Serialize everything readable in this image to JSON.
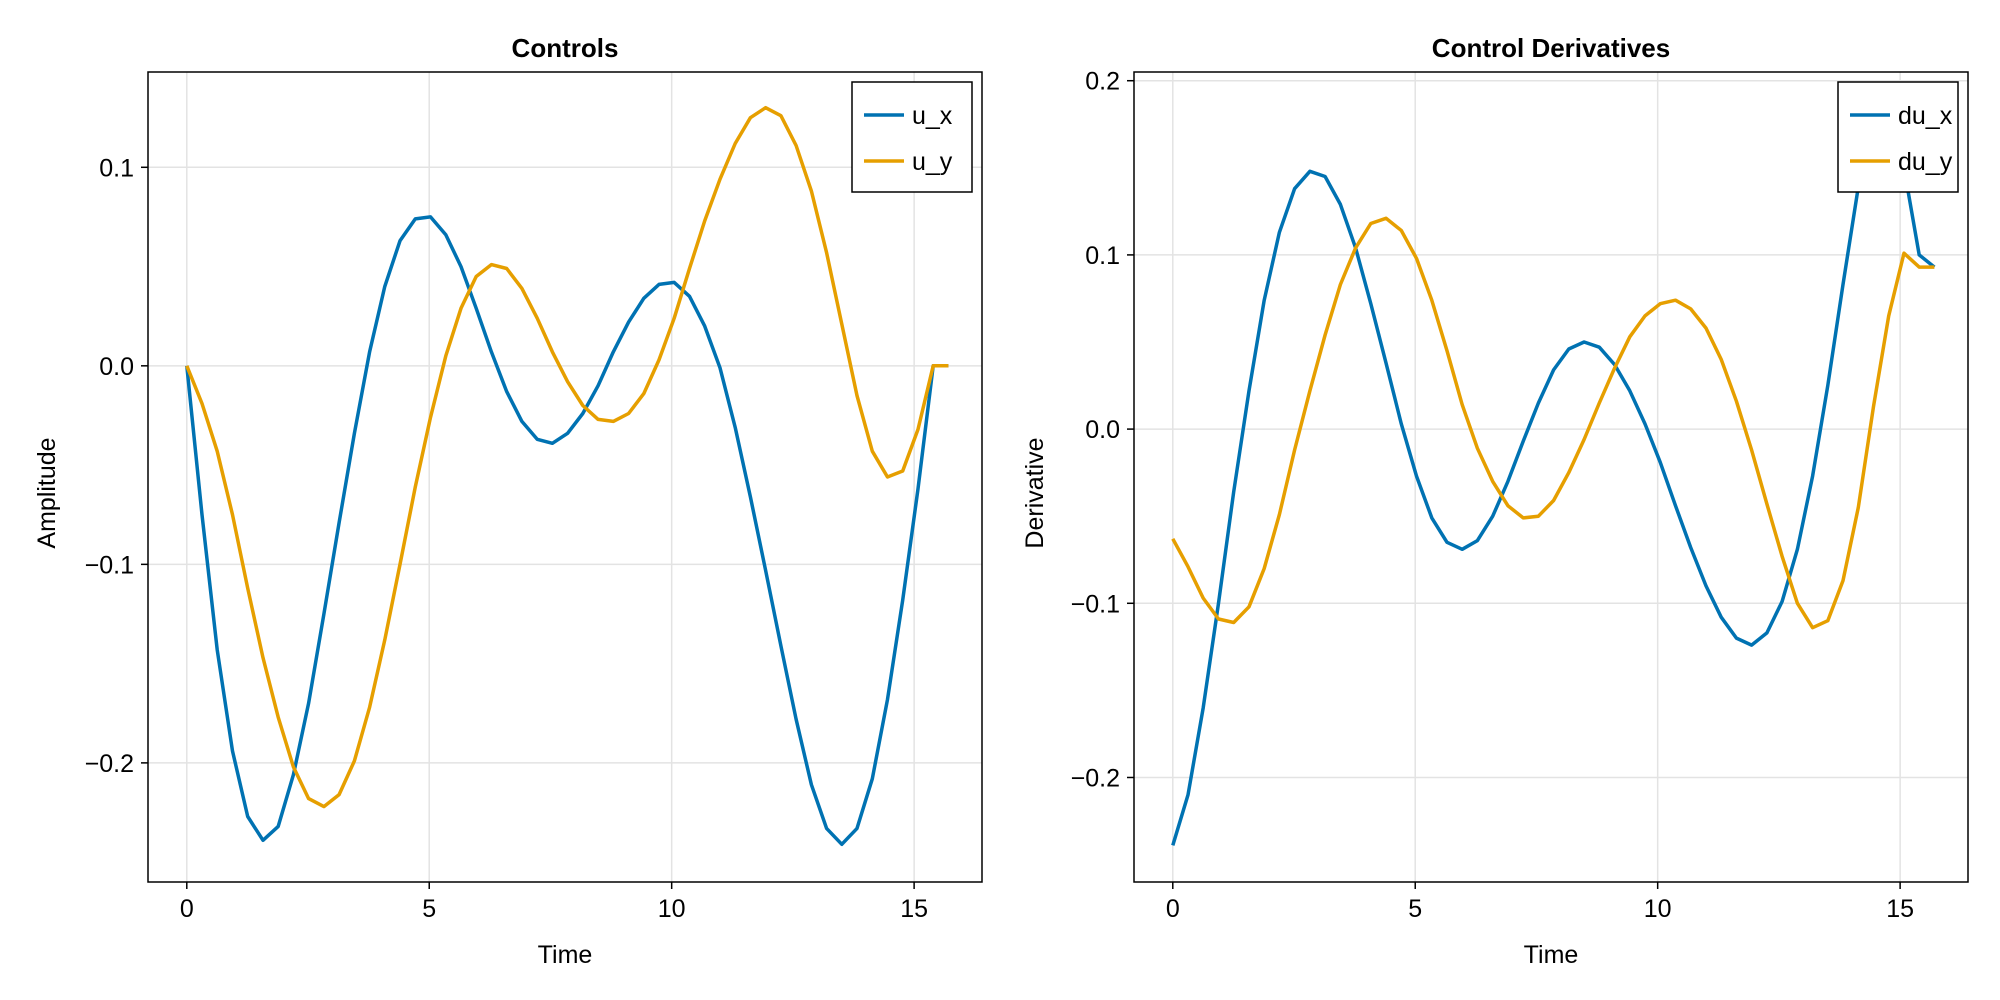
{
  "chart_data": [
    {
      "type": "line",
      "title": "Controls",
      "xlabel": "Time",
      "ylabel": "Amplitude",
      "xlim": [
        -0.8,
        16.4
      ],
      "ylim": [
        -0.26,
        0.148
      ],
      "xticks": [
        0,
        5,
        10,
        15
      ],
      "xtick_labels": [
        "0",
        "5",
        "10",
        "15"
      ],
      "yticks": [
        -0.2,
        -0.1,
        0.0,
        0.1
      ],
      "ytick_labels": [
        "−0.2",
        "−0.1",
        "0.0",
        "0.1"
      ],
      "grid": true,
      "legend_position": "top-right",
      "x": [
        0,
        0.314,
        0.628,
        0.942,
        1.257,
        1.571,
        1.885,
        2.199,
        2.513,
        2.827,
        3.142,
        3.456,
        3.77,
        4.084,
        4.398,
        4.712,
        5.027,
        5.341,
        5.655,
        5.969,
        6.283,
        6.597,
        6.912,
        7.226,
        7.54,
        7.854,
        8.168,
        8.482,
        8.796,
        9.111,
        9.425,
        9.739,
        10.053,
        10.367,
        10.681,
        10.996,
        11.31,
        11.624,
        11.938,
        12.252,
        12.566,
        12.881,
        13.195,
        13.509,
        13.823,
        14.137,
        14.451,
        14.765,
        15.08,
        15.394,
        15.708
      ],
      "series": [
        {
          "name": "u_x",
          "color": "#0072b2",
          "values": [
            0.0,
            -0.075,
            -0.143,
            -0.194,
            -0.227,
            -0.239,
            -0.232,
            -0.206,
            -0.17,
            -0.125,
            -0.079,
            -0.034,
            0.007,
            0.04,
            0.063,
            0.074,
            0.075,
            0.066,
            0.05,
            0.029,
            0.007,
            -0.013,
            -0.028,
            -0.037,
            -0.039,
            -0.034,
            -0.024,
            -0.01,
            0.007,
            0.022,
            0.034,
            0.041,
            0.042,
            0.035,
            0.02,
            -0.001,
            -0.031,
            -0.066,
            -0.103,
            -0.141,
            -0.178,
            -0.211,
            -0.233,
            -0.241,
            -0.233,
            -0.208,
            -0.168,
            -0.118,
            -0.062,
            0.0,
            0.0
          ]
        },
        {
          "name": "u_y",
          "color": "#e69f00",
          "values": [
            0.0,
            -0.019,
            -0.043,
            -0.075,
            -0.112,
            -0.147,
            -0.177,
            -0.202,
            -0.218,
            -0.222,
            -0.216,
            -0.199,
            -0.172,
            -0.138,
            -0.1,
            -0.061,
            -0.026,
            0.005,
            0.029,
            0.045,
            0.051,
            0.049,
            0.039,
            0.024,
            0.007,
            -0.008,
            -0.02,
            -0.027,
            -0.028,
            -0.024,
            -0.014,
            0.003,
            0.024,
            0.049,
            0.073,
            0.094,
            0.112,
            0.125,
            0.13,
            0.126,
            0.111,
            0.088,
            0.057,
            0.021,
            -0.015,
            -0.043,
            -0.056,
            -0.053,
            -0.032,
            0.0,
            0.0
          ]
        }
      ]
    },
    {
      "type": "line",
      "title": "Control Derivatives",
      "xlabel": "Time",
      "ylabel": "Derivative",
      "xlim": [
        -0.8,
        16.4
      ],
      "ylim": [
        -0.26,
        0.205
      ],
      "xticks": [
        0,
        5,
        10,
        15
      ],
      "xtick_labels": [
        "0",
        "5",
        "10",
        "15"
      ],
      "yticks": [
        -0.2,
        -0.1,
        0.0,
        0.1,
        0.2
      ],
      "ytick_labels": [
        "−0.2",
        "−0.1",
        "0.0",
        "0.1",
        "0.2"
      ],
      "grid": true,
      "legend_position": "top-right",
      "x": [
        0,
        0.314,
        0.628,
        0.942,
        1.257,
        1.571,
        1.885,
        2.199,
        2.513,
        2.827,
        3.142,
        3.456,
        3.77,
        4.084,
        4.398,
        4.712,
        5.027,
        5.341,
        5.655,
        5.969,
        6.283,
        6.597,
        6.912,
        7.226,
        7.54,
        7.854,
        8.168,
        8.482,
        8.796,
        9.111,
        9.425,
        9.739,
        10.053,
        10.367,
        10.681,
        10.996,
        11.31,
        11.624,
        11.938,
        12.252,
        12.566,
        12.881,
        13.195,
        13.509,
        13.823,
        14.137,
        14.451,
        14.765,
        15.08,
        15.394,
        15.708
      ],
      "series": [
        {
          "name": "du_x",
          "color": "#0072b2",
          "values": [
            -0.239,
            -0.21,
            -0.16,
            -0.1,
            -0.036,
            0.022,
            0.074,
            0.113,
            0.138,
            0.148,
            0.145,
            0.129,
            0.104,
            0.072,
            0.038,
            0.003,
            -0.027,
            -0.051,
            -0.065,
            -0.069,
            -0.064,
            -0.05,
            -0.03,
            -0.007,
            0.015,
            0.034,
            0.046,
            0.05,
            0.047,
            0.037,
            0.022,
            0.003,
            -0.019,
            -0.044,
            -0.068,
            -0.09,
            -0.108,
            -0.12,
            -0.124,
            -0.117,
            -0.099,
            -0.069,
            -0.027,
            0.025,
            0.083,
            0.139,
            0.18,
            0.185,
            0.15,
            0.1,
            0.093
          ]
        },
        {
          "name": "du_y",
          "color": "#e69f00",
          "values": [
            -0.063,
            -0.079,
            -0.097,
            -0.109,
            -0.111,
            -0.102,
            -0.08,
            -0.049,
            -0.012,
            0.022,
            0.054,
            0.083,
            0.104,
            0.118,
            0.121,
            0.114,
            0.098,
            0.074,
            0.045,
            0.014,
            -0.011,
            -0.03,
            -0.044,
            -0.051,
            -0.05,
            -0.041,
            -0.025,
            -0.006,
            0.015,
            0.035,
            0.053,
            0.065,
            0.072,
            0.074,
            0.069,
            0.058,
            0.04,
            0.016,
            -0.012,
            -0.043,
            -0.073,
            -0.1,
            -0.114,
            -0.11,
            -0.087,
            -0.045,
            0.013,
            0.065,
            0.101,
            0.093,
            0.093
          ]
        }
      ]
    }
  ]
}
